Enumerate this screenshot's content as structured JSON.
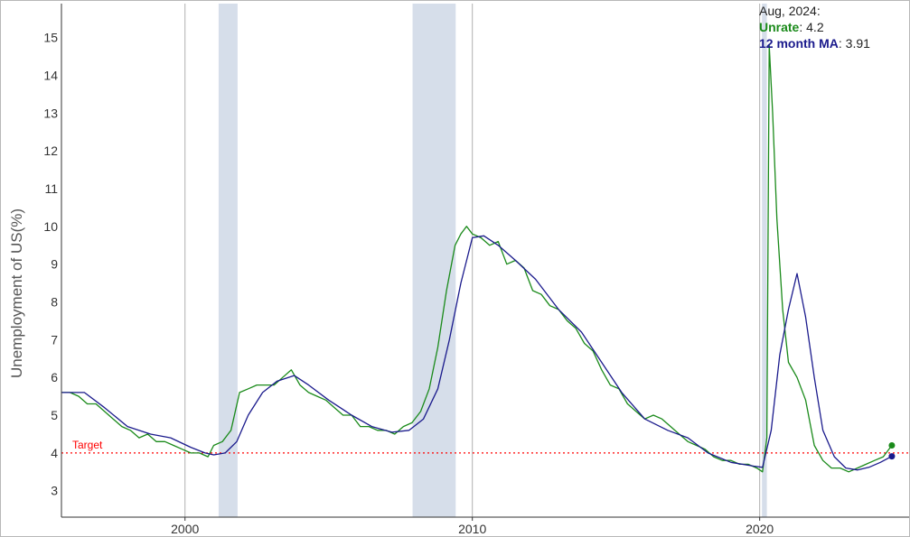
{
  "chart_data": {
    "type": "line",
    "ylabel": "Unemployment of US(%)",
    "xlabel": "",
    "xlim": [
      1995.7,
      2025.2
    ],
    "ylim": [
      2.3,
      15.9
    ],
    "x_ticks": [
      2000,
      2010,
      2020
    ],
    "y_ticks": [
      3,
      4,
      5,
      6,
      7,
      8,
      9,
      10,
      11,
      12,
      13,
      14,
      15
    ],
    "vertical_lines": [
      2000,
      2010,
      2020
    ],
    "recessions": [
      [
        2001.17,
        2001.83
      ],
      [
        2007.92,
        2009.42
      ],
      [
        2020.08,
        2020.25
      ]
    ],
    "target": {
      "label": "Target",
      "value": 4.0,
      "color": "#ff0000"
    },
    "annotation": {
      "date": "Aug, 2024:",
      "series1_label": "Unrate",
      "series1_value": ": 4.2",
      "series2_label": "12 month MA",
      "series2_value": ": 3.91"
    },
    "series": [
      {
        "name": "Unrate",
        "color": "#1a8a1a",
        "x": [
          1995.7,
          1996.0,
          1996.3,
          1996.6,
          1996.9,
          1997.2,
          1997.5,
          1997.8,
          1998.1,
          1998.4,
          1998.7,
          1999.0,
          1999.3,
          1999.6,
          1999.9,
          2000.2,
          2000.5,
          2000.8,
          2001.0,
          2001.3,
          2001.6,
          2001.9,
          2002.2,
          2002.5,
          2002.8,
          2003.1,
          2003.4,
          2003.7,
          2004.0,
          2004.3,
          2004.6,
          2004.9,
          2005.2,
          2005.5,
          2005.8,
          2006.1,
          2006.4,
          2006.7,
          2007.0,
          2007.3,
          2007.6,
          2007.9,
          2008.2,
          2008.5,
          2008.8,
          2009.1,
          2009.4,
          2009.6,
          2009.8,
          2010.0,
          2010.3,
          2010.6,
          2010.9,
          2011.2,
          2011.5,
          2011.8,
          2012.1,
          2012.4,
          2012.7,
          2013.0,
          2013.3,
          2013.6,
          2013.9,
          2014.2,
          2014.5,
          2014.8,
          2015.1,
          2015.4,
          2015.7,
          2016.0,
          2016.3,
          2016.6,
          2016.9,
          2017.2,
          2017.5,
          2017.8,
          2018.1,
          2018.4,
          2018.7,
          2019.0,
          2019.3,
          2019.6,
          2019.9,
          2020.1,
          2020.25,
          2020.33,
          2020.45,
          2020.6,
          2020.8,
          2021.0,
          2021.3,
          2021.6,
          2021.9,
          2022.2,
          2022.5,
          2022.8,
          2023.1,
          2023.4,
          2023.7,
          2024.0,
          2024.3,
          2024.6
        ],
        "values": [
          5.6,
          5.6,
          5.5,
          5.3,
          5.3,
          5.1,
          4.9,
          4.7,
          4.6,
          4.4,
          4.5,
          4.3,
          4.3,
          4.2,
          4.1,
          4.0,
          4.0,
          3.9,
          4.2,
          4.3,
          4.6,
          5.6,
          5.7,
          5.8,
          5.8,
          5.8,
          6.0,
          6.2,
          5.8,
          5.6,
          5.5,
          5.4,
          5.2,
          5.0,
          5.0,
          4.7,
          4.7,
          4.6,
          4.6,
          4.5,
          4.7,
          4.8,
          5.1,
          5.7,
          6.8,
          8.3,
          9.5,
          9.8,
          10.0,
          9.8,
          9.7,
          9.5,
          9.6,
          9.0,
          9.1,
          8.9,
          8.3,
          8.2,
          7.9,
          7.8,
          7.5,
          7.3,
          6.9,
          6.7,
          6.2,
          5.8,
          5.7,
          5.3,
          5.1,
          4.9,
          5.0,
          4.9,
          4.7,
          4.5,
          4.3,
          4.2,
          4.1,
          3.9,
          3.8,
          3.8,
          3.7,
          3.7,
          3.6,
          3.5,
          4.4,
          14.8,
          13.0,
          10.2,
          7.8,
          6.4,
          6.0,
          5.4,
          4.2,
          3.8,
          3.6,
          3.6,
          3.5,
          3.6,
          3.7,
          3.8,
          3.9,
          4.2
        ]
      },
      {
        "name": "12 month MA",
        "color": "#1a1a8c",
        "x": [
          1995.7,
          1996.5,
          1997.2,
          1998.0,
          1998.8,
          1999.5,
          2000.2,
          2000.7,
          2001.0,
          2001.4,
          2001.8,
          2002.2,
          2002.7,
          2003.2,
          2003.8,
          2004.3,
          2005.0,
          2005.8,
          2006.5,
          2007.2,
          2007.8,
          2008.3,
          2008.8,
          2009.2,
          2009.6,
          2010.0,
          2010.4,
          2010.9,
          2011.5,
          2012.2,
          2013.0,
          2013.8,
          2014.5,
          2015.2,
          2016.0,
          2016.8,
          2017.5,
          2018.2,
          2019.0,
          2019.8,
          2020.1,
          2020.4,
          2020.7,
          2021.0,
          2021.3,
          2021.6,
          2021.9,
          2022.2,
          2022.6,
          2023.0,
          2023.4,
          2023.8,
          2024.2,
          2024.6
        ],
        "values": [
          5.6,
          5.6,
          5.2,
          4.7,
          4.5,
          4.4,
          4.15,
          4.0,
          3.95,
          4.0,
          4.3,
          5.0,
          5.6,
          5.9,
          6.05,
          5.8,
          5.4,
          5.0,
          4.7,
          4.55,
          4.6,
          4.9,
          5.7,
          7.0,
          8.5,
          9.7,
          9.75,
          9.5,
          9.1,
          8.6,
          7.8,
          7.2,
          6.4,
          5.6,
          4.9,
          4.6,
          4.4,
          4.0,
          3.75,
          3.65,
          3.62,
          4.6,
          6.6,
          7.8,
          8.75,
          7.6,
          6.0,
          4.6,
          3.9,
          3.6,
          3.55,
          3.62,
          3.75,
          3.91
        ]
      }
    ]
  }
}
